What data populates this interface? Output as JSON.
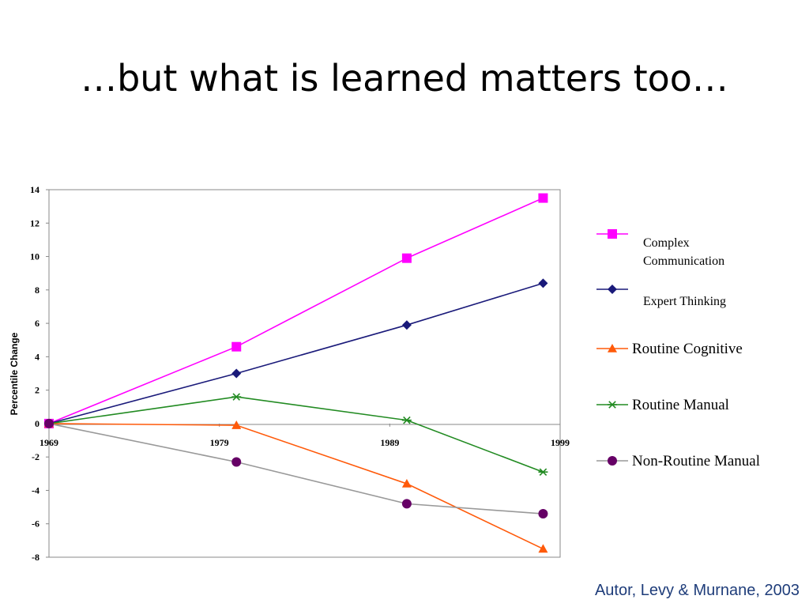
{
  "slide": {
    "title": "…but what is learned matters too…",
    "citation": "Autor, Levy & Murnane, 2003"
  },
  "chart_data": {
    "type": "line",
    "title": "",
    "xlabel": "",
    "ylabel": "Percentile Change",
    "x": [
      1969,
      1979,
      1989,
      1999
    ],
    "x_tick_labels": [
      "1969",
      "1979",
      "1989",
      "1999"
    ],
    "y_ticks": [
      14,
      12,
      10,
      8,
      6,
      4,
      2,
      0,
      -2,
      -4,
      -6,
      -8
    ],
    "ylim": [
      -8,
      14
    ],
    "grid": false,
    "legend_position": "right",
    "series": [
      {
        "name": "Complex Communication",
        "name_lines": [
          "Complex",
          "Communication"
        ],
        "color": "#ff00ff",
        "marker": "square",
        "points": [
          [
            1969,
            0
          ],
          [
            1980,
            4.6
          ],
          [
            1990,
            9.9
          ],
          [
            1998,
            13.5
          ]
        ]
      },
      {
        "name": "Expert Thinking",
        "name_lines": [
          "Expert Thinking"
        ],
        "color": "#1a1a7a",
        "marker": "diamond",
        "points": [
          [
            1969,
            0
          ],
          [
            1980,
            3.0
          ],
          [
            1990,
            5.9
          ],
          [
            1998,
            8.4
          ]
        ]
      },
      {
        "name": "Routine Cognitive",
        "name_lines": [
          "Routine Cognitive"
        ],
        "color": "#ff5a0a",
        "marker": "triangle",
        "points": [
          [
            1969,
            0
          ],
          [
            1980,
            -0.1
          ],
          [
            1990,
            -3.6
          ],
          [
            1998,
            -7.5
          ]
        ]
      },
      {
        "name": "Routine Manual",
        "name_lines": [
          "Routine Manual"
        ],
        "color": "#228b22",
        "marker": "asterisk",
        "points": [
          [
            1969,
            0
          ],
          [
            1980,
            1.6
          ],
          [
            1990,
            0.2
          ],
          [
            1998,
            -2.9
          ]
        ]
      },
      {
        "name": "Non-Routine Manual",
        "name_lines": [
          "Non-Routine Manual"
        ],
        "color": "#999999",
        "marker": "circle",
        "marker_color": "#660066",
        "points": [
          [
            1969,
            0
          ],
          [
            1980,
            -2.3
          ],
          [
            1990,
            -4.8
          ],
          [
            1998,
            -5.4
          ]
        ]
      }
    ]
  }
}
